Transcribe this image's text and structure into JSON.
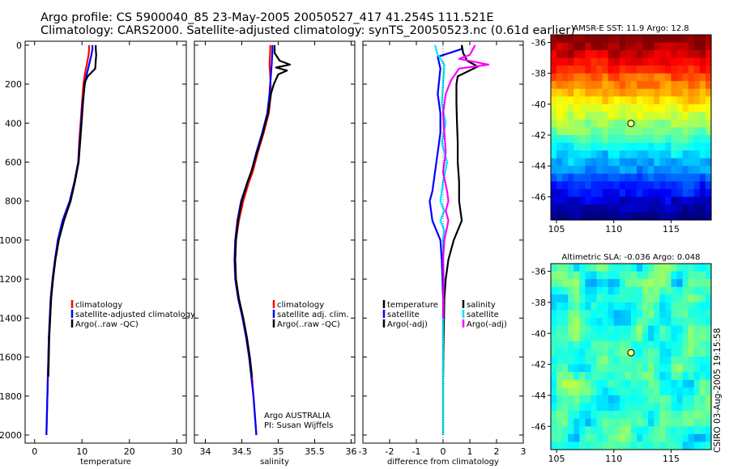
{
  "header": {
    "line1": "Argo profile: CS 5900040_85 23-May-2005 20050527_417 41.254S 111.521E",
    "line2": "Climatology: CARS2000. Satellite-adjusted climatology: synTS_20050523.nc (0.61d earlier)"
  },
  "stamp": "CSIRO 03-Aug-2005 19:15:58",
  "colors": {
    "climatology": "#ff0000",
    "satellite": "#0000ff",
    "argo": "#000000",
    "sal_satellite": "#00e5ff",
    "sal_argo": "#ff00ff",
    "marker": "#ffff66"
  },
  "chart_data": [
    {
      "type": "line",
      "id": "temperature",
      "xlabel": "temperature",
      "ylabel": "",
      "xlim": [
        -2,
        32
      ],
      "ylim": [
        2050,
        0
      ],
      "xticks": [
        0,
        10,
        20,
        30
      ],
      "xtick_labels": [
        "0",
        "10",
        "20",
        "30"
      ],
      "yticks": [
        0,
        200,
        400,
        600,
        800,
        1000,
        1200,
        1400,
        1600,
        1800,
        2000
      ],
      "ytick_labels": [
        "0",
        "200",
        "400",
        "600",
        "800",
        "1000",
        "1200",
        "1400",
        "1600",
        "1800",
        "2000"
      ],
      "legend": [
        "climatology",
        "satellite-adjusted climatology",
        "Argo(..raw -QC)"
      ],
      "series": [
        {
          "name": "climatology",
          "color": "#ff0000",
          "points": [
            [
              11.5,
              0
            ],
            [
              11.5,
              20
            ],
            [
              11.4,
              50
            ],
            [
              11.0,
              100
            ],
            [
              10.6,
              150
            ],
            [
              10.3,
              200
            ],
            [
              10.0,
              300
            ],
            [
              9.7,
              400
            ],
            [
              9.4,
              500
            ],
            [
              9.2,
              600
            ],
            [
              8.5,
              700
            ],
            [
              7.5,
              800
            ],
            [
              6.0,
              900
            ],
            [
              5.0,
              1000
            ],
            [
              4.3,
              1100
            ],
            [
              3.8,
              1200
            ],
            [
              3.4,
              1300
            ],
            [
              3.2,
              1400
            ],
            [
              3.0,
              1500
            ],
            [
              2.9,
              1600
            ],
            [
              2.8,
              1700
            ],
            [
              2.7,
              1800
            ],
            [
              2.6,
              1900
            ],
            [
              2.5,
              2000
            ]
          ]
        },
        {
          "name": "satellite-adjusted climatology",
          "color": "#0000ff",
          "points": [
            [
              12.2,
              0
            ],
            [
              12.2,
              20
            ],
            [
              12.0,
              50
            ],
            [
              11.5,
              100
            ],
            [
              11.0,
              150
            ],
            [
              10.6,
              200
            ],
            [
              10.1,
              300
            ],
            [
              9.8,
              400
            ],
            [
              9.5,
              500
            ],
            [
              9.2,
              600
            ],
            [
              8.4,
              700
            ],
            [
              7.4,
              800
            ],
            [
              5.9,
              900
            ],
            [
              4.9,
              1000
            ],
            [
              4.3,
              1100
            ],
            [
              3.8,
              1200
            ],
            [
              3.4,
              1300
            ],
            [
              3.2,
              1400
            ],
            [
              3.0,
              1500
            ],
            [
              2.9,
              1600
            ],
            [
              2.8,
              1700
            ],
            [
              2.7,
              1800
            ],
            [
              2.6,
              1900
            ],
            [
              2.5,
              2000
            ]
          ]
        },
        {
          "name": "Argo(..raw -QC)",
          "color": "#000000",
          "points": [
            [
              12.9,
              0
            ],
            [
              12.9,
              20
            ],
            [
              13.0,
              50
            ],
            [
              12.9,
              80
            ],
            [
              12.8,
              120
            ],
            [
              11.2,
              160
            ],
            [
              10.6,
              190
            ],
            [
              10.2,
              300
            ],
            [
              9.9,
              400
            ],
            [
              9.6,
              500
            ],
            [
              9.3,
              600
            ],
            [
              8.5,
              700
            ],
            [
              7.6,
              800
            ],
            [
              6.2,
              900
            ],
            [
              5.1,
              1000
            ],
            [
              4.4,
              1100
            ],
            [
              3.9,
              1200
            ],
            [
              3.5,
              1300
            ],
            [
              3.3,
              1400
            ],
            [
              3.1,
              1500
            ],
            [
              3.0,
              1600
            ],
            [
              2.9,
              1700
            ]
          ]
        }
      ]
    },
    {
      "type": "line",
      "id": "salinity",
      "xlabel": "salinity",
      "ylabel": "",
      "xlim": [
        33.85,
        36.05
      ],
      "ylim": [
        2050,
        0
      ],
      "xticks": [
        34,
        34.5,
        35,
        35.5,
        36
      ],
      "xtick_labels": [
        "34",
        "34.5",
        "35",
        "35.5",
        "36"
      ],
      "legend": [
        "climatology",
        "satellite adj. clim.",
        "Argo(..raw -QC)"
      ],
      "annotation": [
        "Argo AUSTRALIA",
        "PI: Susan Wijffels"
      ],
      "series": [
        {
          "name": "climatology",
          "color": "#ff0000",
          "points": [
            [
              34.89,
              0
            ],
            [
              34.89,
              30
            ],
            [
              34.88,
              100
            ],
            [
              34.89,
              150
            ],
            [
              34.9,
              250
            ],
            [
              34.87,
              350
            ],
            [
              34.8,
              450
            ],
            [
              34.72,
              550
            ],
            [
              34.65,
              650
            ],
            [
              34.6,
              700
            ],
            [
              34.52,
              800
            ],
            [
              34.46,
              900
            ],
            [
              34.42,
              1000
            ],
            [
              34.41,
              1100
            ],
            [
              34.42,
              1200
            ],
            [
              34.46,
              1300
            ],
            [
              34.52,
              1400
            ],
            [
              34.57,
              1500
            ],
            [
              34.61,
              1600
            ],
            [
              34.64,
              1700
            ],
            [
              34.66,
              1800
            ],
            [
              34.68,
              1900
            ],
            [
              34.7,
              2000
            ]
          ]
        },
        {
          "name": "satellite adj. clim.",
          "color": "#0000ff",
          "points": [
            [
              34.92,
              0
            ],
            [
              34.92,
              30
            ],
            [
              34.91,
              100
            ],
            [
              34.9,
              150
            ],
            [
              34.88,
              250
            ],
            [
              34.85,
              350
            ],
            [
              34.78,
              450
            ],
            [
              34.7,
              550
            ],
            [
              34.63,
              650
            ],
            [
              34.58,
              700
            ],
            [
              34.49,
              800
            ],
            [
              34.44,
              900
            ],
            [
              34.41,
              1000
            ],
            [
              34.4,
              1100
            ],
            [
              34.41,
              1200
            ],
            [
              34.45,
              1300
            ],
            [
              34.51,
              1400
            ],
            [
              34.56,
              1500
            ],
            [
              34.6,
              1600
            ],
            [
              34.63,
              1700
            ],
            [
              34.66,
              1800
            ],
            [
              34.68,
              1900
            ],
            [
              34.7,
              2000
            ]
          ]
        },
        {
          "name": "Argo(..raw -QC)",
          "color": "#000000",
          "points": [
            [
              34.95,
              0
            ],
            [
              34.95,
              40
            ],
            [
              35.02,
              80
            ],
            [
              35.16,
              100
            ],
            [
              34.97,
              115
            ],
            [
              35.12,
              130
            ],
            [
              35.0,
              150
            ],
            [
              34.94,
              200
            ],
            [
              34.9,
              250
            ],
            [
              34.86,
              350
            ],
            [
              34.79,
              450
            ],
            [
              34.71,
              550
            ],
            [
              34.63,
              650
            ],
            [
              34.58,
              700
            ],
            [
              34.5,
              800
            ],
            [
              34.45,
              900
            ],
            [
              34.42,
              1000
            ],
            [
              34.41,
              1100
            ],
            [
              34.42,
              1200
            ],
            [
              34.46,
              1300
            ],
            [
              34.52,
              1400
            ],
            [
              34.57,
              1500
            ],
            [
              34.61,
              1600
            ],
            [
              34.64,
              1700
            ]
          ]
        }
      ]
    },
    {
      "type": "line",
      "id": "difference",
      "xlabel": "difference from climatology",
      "ylabel": "",
      "xlim": [
        -3,
        3
      ],
      "ylim": [
        2050,
        0
      ],
      "xticks": [
        -3,
        -2,
        -1,
        0,
        1,
        2,
        3
      ],
      "xtick_labels": [
        "-3",
        "-2",
        "-1",
        "0",
        "1",
        "2",
        "3"
      ],
      "legend_left": [
        "temperature",
        "satellite",
        "Argo(-adj)"
      ],
      "legend_right": [
        "salinity",
        "satellite",
        "Argo(-adj)"
      ],
      "series": [
        {
          "name": "temperature satellite",
          "color": "#0000ff",
          "points": [
            [
              0.7,
              0
            ],
            [
              0.7,
              20
            ],
            [
              -0.2,
              60
            ],
            [
              -0.1,
              120
            ],
            [
              -0.2,
              250
            ],
            [
              -0.1,
              350
            ],
            [
              -0.1,
              450
            ],
            [
              -0.2,
              550
            ],
            [
              -0.3,
              650
            ],
            [
              -0.4,
              750
            ],
            [
              -0.5,
              800
            ],
            [
              -0.4,
              900
            ],
            [
              -0.1,
              1000
            ],
            [
              -0.05,
              1100
            ],
            [
              -0.02,
              1200
            ],
            [
              0,
              1300
            ],
            [
              0,
              1500
            ],
            [
              0,
              1700
            ],
            [
              0,
              1900
            ],
            [
              0,
              2000
            ]
          ]
        },
        {
          "name": "temperature Argo(-adj)",
          "color": "#000000",
          "points": [
            [
              0.7,
              0
            ],
            [
              0.75,
              40
            ],
            [
              0.9,
              80
            ],
            [
              1.3,
              110
            ],
            [
              0.55,
              160
            ],
            [
              0.5,
              200
            ],
            [
              0.5,
              300
            ],
            [
              0.52,
              400
            ],
            [
              0.55,
              500
            ],
            [
              0.55,
              600
            ],
            [
              0.6,
              700
            ],
            [
              0.6,
              800
            ],
            [
              0.7,
              900
            ],
            [
              0.4,
              1000
            ],
            [
              0.2,
              1100
            ],
            [
              0.1,
              1200
            ],
            [
              0.05,
              1300
            ],
            [
              0.02,
              1500
            ],
            [
              0,
              1700
            ]
          ]
        },
        {
          "name": "salinity satellite",
          "color": "#00e5ff",
          "points": [
            [
              -0.3,
              0
            ],
            [
              -0.2,
              50
            ],
            [
              0.05,
              100
            ],
            [
              0.0,
              200
            ],
            [
              -0.05,
              300
            ],
            [
              0.1,
              400
            ],
            [
              -0.05,
              500
            ],
            [
              0.15,
              600
            ],
            [
              0.0,
              700
            ],
            [
              -0.1,
              800
            ],
            [
              0.05,
              850
            ],
            [
              -0.1,
              900
            ],
            [
              0.05,
              950
            ],
            [
              0.0,
              1000
            ],
            [
              0.02,
              1200
            ],
            [
              0,
              1400
            ],
            [
              0,
              1700
            ],
            [
              0,
              2000
            ]
          ]
        },
        {
          "name": "salinity Argo(-adj)",
          "color": "#ff00ff",
          "points": [
            [
              1.2,
              0
            ],
            [
              1.0,
              50
            ],
            [
              0.6,
              70
            ],
            [
              1.7,
              100
            ],
            [
              0.6,
              120
            ],
            [
              0.3,
              180
            ],
            [
              0.1,
              250
            ],
            [
              0.0,
              350
            ],
            [
              0.05,
              450
            ],
            [
              0.1,
              550
            ],
            [
              0.0,
              650
            ],
            [
              0.15,
              750
            ],
            [
              0.2,
              800
            ],
            [
              0.1,
              850
            ],
            [
              0.2,
              900
            ],
            [
              0.05,
              1000
            ],
            [
              0.0,
              1100
            ],
            [
              0.02,
              1200
            ],
            [
              0,
              1400
            ]
          ]
        }
      ]
    },
    {
      "type": "heatmap",
      "id": "sst_map",
      "title": "AMSR-E SST: 11.9 Argo: 12.8",
      "xlim": [
        104.5,
        118.5
      ],
      "ylim": [
        -47.5,
        -35.5
      ],
      "xticks": [
        105,
        110,
        115
      ],
      "xtick_labels": [
        "105",
        "110",
        "115"
      ],
      "yticks": [
        -36,
        -38,
        -40,
        -42,
        -44,
        -46
      ],
      "ytick_labels": [
        "-36",
        "-38",
        "-40",
        "-42",
        "-44",
        "-46"
      ],
      "marker": [
        111.5,
        -41.25
      ]
    },
    {
      "type": "heatmap",
      "id": "sla_map",
      "title": "Altimetric SLA: -0.036 Argo: 0.048",
      "xlim": [
        104.5,
        118.5
      ],
      "ylim": [
        -47.5,
        -35.5
      ],
      "xticks": [
        105,
        110,
        115
      ],
      "xtick_labels": [
        "105",
        "110",
        "115"
      ],
      "yticks": [
        -36,
        -38,
        -40,
        -42,
        -44,
        -46
      ],
      "ytick_labels": [
        "-36",
        "-38",
        "-40",
        "-42",
        "-44",
        "-46"
      ],
      "marker": [
        111.5,
        -41.25
      ]
    }
  ]
}
